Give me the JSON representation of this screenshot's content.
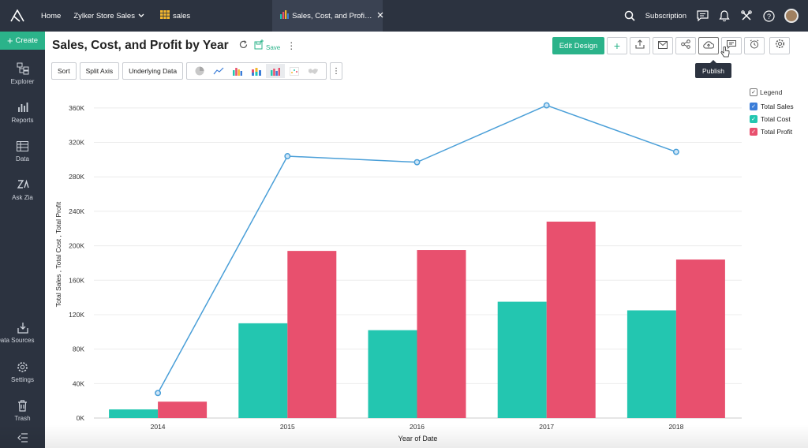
{
  "topbar": {
    "home": "Home",
    "workspace": "Zylker Store Sales",
    "table_tab": "sales",
    "active_tab": "Sales, Cost, and Profit b...",
    "subscription": "Subscription"
  },
  "sidebar": {
    "create": "Create",
    "items": [
      {
        "label": "Explorer",
        "icon": "explorer-icon"
      },
      {
        "label": "Reports",
        "icon": "reports-icon"
      },
      {
        "label": "Data",
        "icon": "data-icon"
      },
      {
        "label": "Ask Zia",
        "icon": "ask-zia-icon"
      },
      {
        "label": "Data Sources",
        "icon": "data-sources-icon"
      },
      {
        "label": "Settings",
        "icon": "settings-icon"
      },
      {
        "label": "Trash",
        "icon": "trash-icon"
      }
    ]
  },
  "header": {
    "title": "Sales, Cost, and Profit by Year",
    "save": "Save",
    "edit_design": "Edit Design",
    "tooltip": "Publish"
  },
  "toolbar": {
    "sort": "Sort",
    "split_axis": "Split Axis",
    "underlying_data": "Underlying Data"
  },
  "legend": {
    "title": "Legend",
    "items": [
      {
        "label": "Total Sales",
        "color": "#3b7dd8"
      },
      {
        "label": "Total Cost",
        "color": "#23c6b0"
      },
      {
        "label": "Total Profit",
        "color": "#e8506e"
      }
    ]
  },
  "chart_data": {
    "type": "bar",
    "categories": [
      "2014",
      "2015",
      "2016",
      "2017",
      "2018"
    ],
    "xlabel": "Year of Date",
    "ylabel": "Total Sales , Total Cost , Total Profit",
    "ylim": [
      0,
      380000
    ],
    "yticks": [
      "0K",
      "40K",
      "80K",
      "120K",
      "160K",
      "200K",
      "240K",
      "280K",
      "320K",
      "360K"
    ],
    "grid": true,
    "legend_position": "right",
    "series": [
      {
        "name": "Total Sales",
        "kind": "line",
        "color": "#4a9fd8",
        "values": [
          29000,
          304000,
          297000,
          363000,
          309000
        ]
      },
      {
        "name": "Total Cost",
        "kind": "bar",
        "color": "#23c6b0",
        "values": [
          10000,
          110000,
          102000,
          135000,
          125000
        ]
      },
      {
        "name": "Total Profit",
        "kind": "bar",
        "color": "#e8506e",
        "values": [
          19000,
          194000,
          195000,
          228000,
          184000
        ]
      }
    ]
  }
}
